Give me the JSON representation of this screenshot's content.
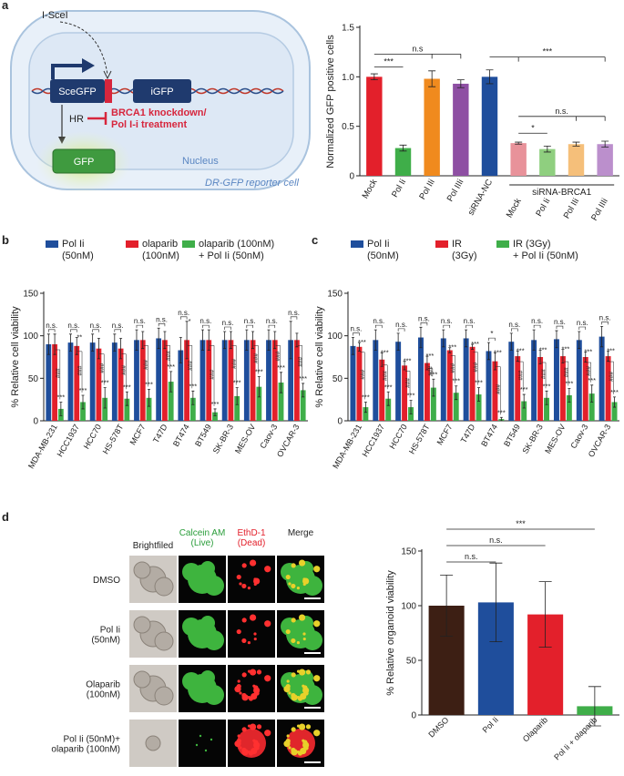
{
  "panel_labels": [
    "a",
    "b",
    "c",
    "d"
  ],
  "diagram": {
    "enzyme": "I-SceI",
    "gene1": "SceGFP",
    "gene2": "iGFP",
    "repair": "HR",
    "inhibition": "BRCA1 knockdown/\nPol I-i treatment",
    "product": "GFP",
    "nucleus": "Nucleus",
    "cell": "DR-GFP reporter cell"
  },
  "images": {
    "columns": [
      "Brightfiled",
      "Calcein AM\n(Live)",
      "EthD-1\n(Dead)",
      "Merge"
    ],
    "rows": [
      "DMSO",
      "Pol Ii\n(50nM)",
      "Olaparib\n(100nM)",
      "Pol Ii (50nM)+\nolaparib (100nM)"
    ]
  },
  "chart_data": [
    {
      "type": "bar",
      "ylabel": "Normalized GFP positive cells",
      "categories": [
        "Mock",
        "Pol Ii",
        "Pol IIi",
        "Pol IIIi",
        "siRNA-NC",
        "Mock",
        "Pol Ii",
        "Pol IIi",
        "Pol IIIi"
      ],
      "group_label": "siRNA-BRCA1",
      "values": [
        1.0,
        0.28,
        0.98,
        0.93,
        1.0,
        0.33,
        0.27,
        0.32,
        0.32
      ],
      "errors": [
        0.03,
        0.03,
        0.08,
        0.04,
        0.07,
        0.01,
        0.03,
        0.02,
        0.03
      ],
      "colors": [
        "#e3202b",
        "#3fae49",
        "#f08a1e",
        "#8e4fa3",
        "#1f4e9c",
        "#e8929a",
        "#8fcf7f",
        "#f5bf7a",
        "#bb8fcc"
      ],
      "ylim": [
        0,
        1.5
      ],
      "yticks": [
        0,
        0.5,
        {
          "value": 1,
          "label": "1.0"
        },
        1.5
      ],
      "annotations": [
        "***",
        "n.s",
        "***",
        "n.s.",
        "*"
      ]
    },
    {
      "type": "bar",
      "ylabel": "% Relative cell viability",
      "categories": [
        "MDA-MB-231",
        "HCC1937",
        "HCC70",
        "HS-578T",
        "MCF7",
        "T47D",
        "BT474",
        "BT549",
        "SK-BR-3",
        "MES-OV",
        "Caov-3",
        "OVCAR-3"
      ],
      "series": [
        {
          "name": "Pol Ii\n(50nM)",
          "color": "#1f4e9c",
          "values": [
            90,
            92,
            92,
            92,
            95,
            97,
            83,
            95,
            95,
            95,
            95,
            95
          ],
          "errors": [
            12,
            10,
            10,
            10,
            12,
            12,
            15,
            12,
            10,
            12,
            12,
            22
          ]
        },
        {
          "name": "olaparib\n(100nM)",
          "color": "#e3202b",
          "values": [
            90,
            88,
            85,
            85,
            95,
            95,
            95,
            95,
            95,
            95,
            95,
            95
          ],
          "errors": [
            12,
            10,
            12,
            12,
            10,
            10,
            22,
            12,
            10,
            10,
            10,
            8
          ]
        },
        {
          "name": "olaparib (100nM)\n+ Pol Ii (50nM)",
          "color": "#3fae49",
          "values": [
            14,
            22,
            27,
            26,
            27,
            46,
            27,
            10,
            29,
            40,
            45,
            36
          ],
          "errors": [
            8,
            8,
            12,
            8,
            10,
            12,
            8,
            4,
            10,
            12,
            12,
            8
          ]
        }
      ],
      "ylim": [
        0,
        150
      ],
      "yticks": [
        0,
        50,
        100,
        150
      ],
      "annotations": {
        "top": [
          "n.s.",
          "n.s.",
          "n.s.",
          "n.s.",
          "n.s.",
          "n.s.",
          "n.s.",
          "n.s.",
          "n.s.",
          "n.s.",
          "n.s.",
          "n.s."
        ],
        "pair": [
          null,
          "**",
          null,
          null,
          null,
          null,
          "*",
          null,
          null,
          null,
          null,
          null
        ],
        "rep": [
          "###",
          "###",
          "###",
          "###",
          "###",
          "###",
          "###",
          "###",
          "###",
          "###",
          "###",
          "###"
        ],
        "combo": [
          "***",
          "***",
          "***",
          "***",
          "***",
          "***",
          "***",
          "***",
          "***",
          "***",
          "***",
          "***"
        ]
      }
    },
    {
      "type": "bar",
      "ylabel": "% Relative cell viability",
      "categories": [
        "MDA-MB-231",
        "HCC1937",
        "HCC70",
        "HS-578T",
        "MCF7",
        "T47D",
        "BT474",
        "BT549",
        "SK-BR-3",
        "MES-OV",
        "Caov-3",
        "OVCAR-3"
      ],
      "series": [
        {
          "name": "Pol Ii\n(50nM)",
          "color": "#1f4e9c",
          "values": [
            88,
            95,
            93,
            98,
            97,
            97,
            82,
            93,
            95,
            96,
            95,
            99
          ],
          "errors": [
            10,
            12,
            10,
            12,
            10,
            10,
            10,
            10,
            12,
            10,
            10,
            12
          ]
        },
        {
          "name": "IR\n(3Gy)",
          "color": "#e3202b",
          "values": [
            87,
            72,
            65,
            68,
            83,
            87,
            70,
            76,
            75,
            76,
            75,
            76
          ],
          "errors": [
            5,
            8,
            5,
            8,
            3,
            3,
            10,
            6,
            8,
            8,
            6,
            6
          ]
        },
        {
          "name": "IR (3Gy)\n+ Pol Ii (50nM)",
          "color": "#3fae49",
          "values": [
            16,
            26,
            16,
            39,
            33,
            31,
            2,
            23,
            27,
            30,
            32,
            22
          ],
          "errors": [
            6,
            8,
            8,
            10,
            8,
            8,
            2,
            8,
            8,
            8,
            10,
            6
          ]
        }
      ],
      "ylim": [
        0,
        150
      ],
      "yticks": [
        0,
        50,
        100,
        150
      ],
      "annotations": {
        "top": [
          "n.s.",
          "n.s.",
          "n.s.",
          "n.s.",
          "n.s.",
          "n.s.",
          "*",
          "n.s.",
          "n.s.",
          "n.s.",
          "n.s.",
          "n.s."
        ],
        "pair": [
          "***",
          "***",
          "***",
          "***",
          "***",
          "***",
          "***",
          "***",
          "***",
          "***",
          "***",
          "***"
        ],
        "rep": [
          "###",
          "###",
          "###",
          "###",
          "###",
          "###",
          "###",
          "###",
          "###",
          "###",
          "###",
          "###"
        ],
        "combo": [
          "***",
          "***",
          "***",
          "***",
          "***",
          "***",
          "***",
          "***",
          "***",
          "***",
          "***",
          "***"
        ]
      }
    },
    {
      "type": "bar",
      "ylabel": "% Relative organoid viability",
      "categories": [
        "DMSO",
        "Pol Ii",
        "Olaparib",
        "Pol Ii + olaparib"
      ],
      "values": [
        100,
        103,
        92,
        8
      ],
      "errors": [
        28,
        36,
        30,
        18
      ],
      "colors": [
        "#3d1f14",
        "#1f4e9c",
        "#e3202b",
        "#3fae49"
      ],
      "ylim": [
        0,
        150
      ],
      "yticks": [
        0,
        50,
        100,
        150
      ],
      "annotations": [
        "n.s.",
        "n.s.",
        "***"
      ]
    }
  ]
}
